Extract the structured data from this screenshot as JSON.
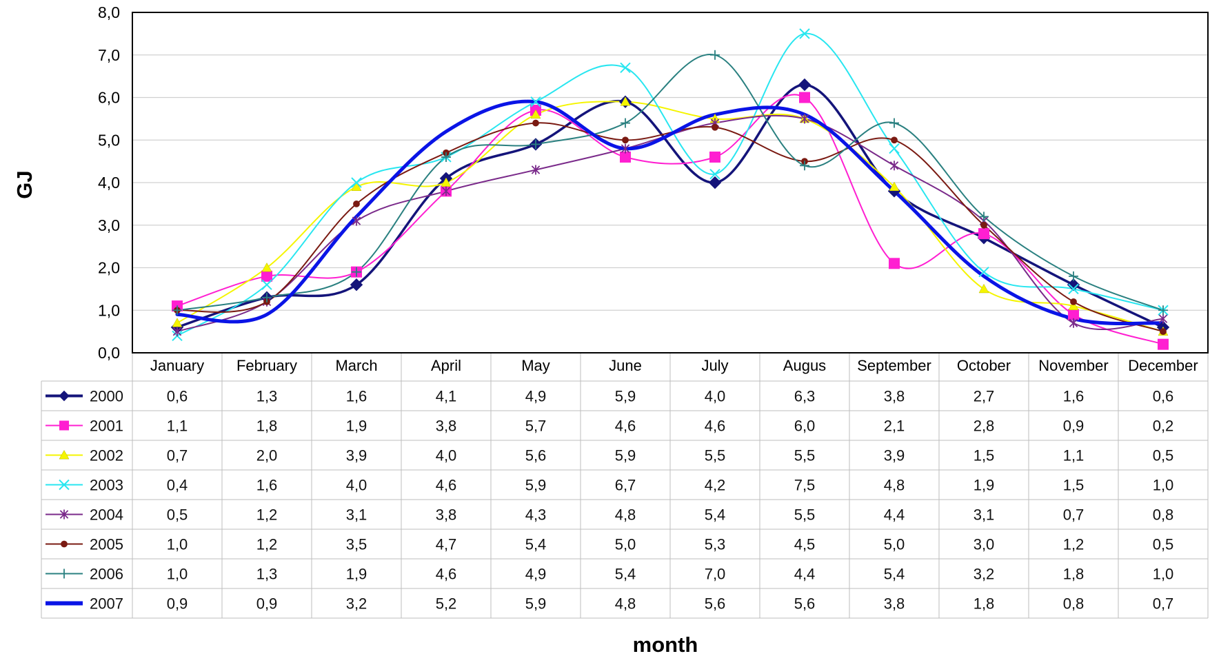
{
  "chart_data": {
    "type": "line",
    "xlabel": "month",
    "ylabel": "GJ",
    "ylim": [
      0,
      8
    ],
    "ytick_labels": [
      "0,0",
      "1,0",
      "2,0",
      "3,0",
      "4,0",
      "5,0",
      "6,0",
      "7,0",
      "8,0"
    ],
    "grid": "horizontal",
    "legend": "data-table-below",
    "categories": [
      "January",
      "February",
      "March",
      "April",
      "May",
      "June",
      "July",
      "Augus",
      "September",
      "October",
      "November",
      "December"
    ],
    "series": [
      {
        "name": "2000",
        "color": "#14147a",
        "marker": "diamond",
        "values": [
          0.6,
          1.3,
          1.6,
          4.1,
          4.9,
          5.9,
          4.0,
          6.3,
          3.8,
          2.7,
          1.6,
          0.6
        ],
        "value_labels": [
          "0,6",
          "1,3",
          "1,6",
          "4,1",
          "4,9",
          "5,9",
          "4,0",
          "6,3",
          "3,8",
          "2,7",
          "1,6",
          "0,6"
        ]
      },
      {
        "name": "2001",
        "color": "#ff1fd1",
        "marker": "square",
        "values": [
          1.1,
          1.8,
          1.9,
          3.8,
          5.7,
          4.6,
          4.6,
          6.0,
          2.1,
          2.8,
          0.9,
          0.2
        ],
        "value_labels": [
          "1,1",
          "1,8",
          "1,9",
          "3,8",
          "5,7",
          "4,6",
          "4,6",
          "6,0",
          "2,1",
          "2,8",
          "0,9",
          "0,2"
        ]
      },
      {
        "name": "2002",
        "color": "#f5f500",
        "marker": "triangle",
        "values": [
          0.7,
          2.0,
          3.9,
          4.0,
          5.6,
          5.9,
          5.5,
          5.5,
          3.9,
          1.5,
          1.1,
          0.5
        ],
        "value_labels": [
          "0,7",
          "2,0",
          "3,9",
          "4,0",
          "5,6",
          "5,9",
          "5,5",
          "5,5",
          "3,9",
          "1,5",
          "1,1",
          "0,5"
        ]
      },
      {
        "name": "2003",
        "color": "#28e6f0",
        "marker": "x",
        "values": [
          0.4,
          1.6,
          4.0,
          4.6,
          5.9,
          6.7,
          4.2,
          7.5,
          4.8,
          1.9,
          1.5,
          1.0
        ],
        "value_labels": [
          "0,4",
          "1,6",
          "4,0",
          "4,6",
          "5,9",
          "6,7",
          "4,2",
          "7,5",
          "4,8",
          "1,9",
          "1,5",
          "1,0"
        ]
      },
      {
        "name": "2004",
        "color": "#7a2a8a",
        "marker": "star",
        "values": [
          0.5,
          1.2,
          3.1,
          3.8,
          4.3,
          4.8,
          5.4,
          5.5,
          4.4,
          3.1,
          0.7,
          0.8
        ],
        "value_labels": [
          "0,5",
          "1,2",
          "3,1",
          "3,8",
          "4,3",
          "4,8",
          "5,4",
          "5,5",
          "4,4",
          "3,1",
          "0,7",
          "0,8"
        ]
      },
      {
        "name": "2005",
        "color": "#7a1a12",
        "marker": "circle",
        "values": [
          1.0,
          1.2,
          3.5,
          4.7,
          5.4,
          5.0,
          5.3,
          4.5,
          5.0,
          3.0,
          1.2,
          0.5
        ],
        "value_labels": [
          "1,0",
          "1,2",
          "3,5",
          "4,7",
          "5,4",
          "5,0",
          "5,3",
          "4,5",
          "5,0",
          "3,0",
          "1,2",
          "0,5"
        ]
      },
      {
        "name": "2006",
        "color": "#2a8080",
        "marker": "plus",
        "values": [
          1.0,
          1.3,
          1.9,
          4.6,
          4.9,
          5.4,
          7.0,
          4.4,
          5.4,
          3.2,
          1.8,
          1.0
        ],
        "value_labels": [
          "1,0",
          "1,3",
          "1,9",
          "4,6",
          "4,9",
          "5,4",
          "7,0",
          "4,4",
          "5,4",
          "3,2",
          "1,8",
          "1,0"
        ]
      },
      {
        "name": "2007",
        "color": "#0a14e6",
        "marker": "none",
        "values": [
          0.9,
          0.9,
          3.2,
          5.2,
          5.9,
          4.8,
          5.6,
          5.6,
          3.8,
          1.8,
          0.8,
          0.7
        ],
        "value_labels": [
          "0,9",
          "0,9",
          "3,2",
          "5,2",
          "5,9",
          "4,8",
          "5,6",
          "5,6",
          "3,8",
          "1,8",
          "0,8",
          "0,7"
        ]
      }
    ]
  }
}
